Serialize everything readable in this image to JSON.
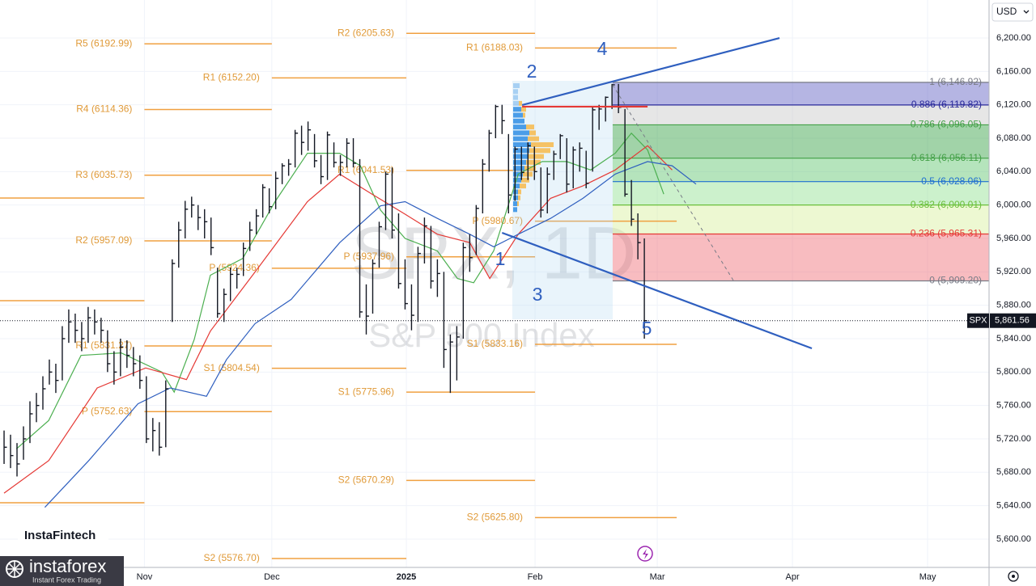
{
  "chart_data": {
    "type": "ohlc",
    "symbol_watermark": "SPX, 1D",
    "name_watermark": "S&P 500 Index",
    "currency": "USD",
    "grid": true,
    "xlim": [
      -0.63,
      152.3
    ],
    "ylim": [
      5566.1,
      6245.5
    ],
    "xticks": [
      {
        "value": 21.7,
        "label": "Nov"
      },
      {
        "value": 41.4,
        "label": "Dec"
      },
      {
        "value": 62.2,
        "label": "2025"
      },
      {
        "value": 82.1,
        "label": "Feb"
      },
      {
        "value": 101,
        "label": "Mar"
      },
      {
        "value": 121.9,
        "label": "Apr"
      },
      {
        "value": 142.8,
        "label": "May"
      }
    ],
    "yticks": [
      {
        "value": 5600,
        "label": "5,600.00"
      },
      {
        "value": 5640,
        "label": "5,640.00"
      },
      {
        "value": 5680,
        "label": "5,680.00"
      },
      {
        "value": 5720,
        "label": "5,720.00"
      },
      {
        "value": 5760,
        "label": "5,760.00"
      },
      {
        "value": 5800,
        "label": "5,800.00"
      },
      {
        "value": 5840,
        "label": "5,840.00"
      },
      {
        "value": 5880,
        "label": "5,880.00"
      },
      {
        "value": 5920,
        "label": "5,920.00"
      },
      {
        "value": 5960,
        "label": "5,960.00"
      },
      {
        "value": 6000,
        "label": "6,000.00"
      },
      {
        "value": 6040,
        "label": "6,040.00"
      },
      {
        "value": 6080,
        "label": "6,080.00"
      },
      {
        "value": 6120,
        "label": "6,120.00"
      },
      {
        "value": 6160,
        "label": "6,160.00"
      },
      {
        "value": 6200,
        "label": "6,200.00"
      }
    ],
    "bar_color": "#131722",
    "high": [
      5730,
      5725,
      5715,
      5735,
      5765,
      5775,
      5795,
      5815,
      5810,
      5855,
      5875,
      5870,
      5860,
      5878,
      5875,
      5865,
      5850,
      5825,
      5840,
      5838,
      5830,
      5820,
      5795,
      5745,
      5740,
      5790,
      5935,
      5980,
      6005,
      6010,
      6000,
      5995,
      5985,
      5925,
      5900,
      5925,
      5925,
      5955,
      5980,
      5995,
      6025,
      6020,
      6040,
      6050,
      6055,
      6090,
      6095,
      6100,
      6085,
      6060,
      6088,
      6075,
      6060,
      6080,
      6080,
      6055,
      5905,
      5935,
      5980,
      6040,
      6045,
      5990,
      5935,
      5905,
      5950,
      5985,
      5975,
      5935,
      5920,
      5845,
      5855,
      5955,
      5965,
      6000,
      6055,
      6090,
      6120,
      6120,
      6085,
      6070,
      6070,
      6075,
      6070,
      6045,
      6045,
      6065,
      6085,
      6080,
      6070,
      6075,
      6065,
      6118,
      6120,
      6130,
      6145,
      6145,
      6115,
      6030,
      5990,
      5960
    ],
    "low": [
      5690,
      5685,
      5675,
      5695,
      5715,
      5740,
      5755,
      5785,
      5775,
      5790,
      5835,
      5835,
      5825,
      5835,
      5845,
      5835,
      5800,
      5785,
      5795,
      5805,
      5795,
      5780,
      5715,
      5705,
      5700,
      5710,
      5860,
      5925,
      5960,
      5985,
      5970,
      5960,
      5940,
      5865,
      5860,
      5885,
      5900,
      5915,
      5945,
      5965,
      5985,
      5990,
      5995,
      6025,
      6035,
      6045,
      6060,
      6065,
      6045,
      6025,
      6030,
      6045,
      6035,
      6045,
      6045,
      5865,
      5845,
      5870,
      5925,
      5970,
      5960,
      5900,
      5875,
      5850,
      5860,
      5930,
      5900,
      5890,
      5805,
      5775,
      5790,
      5840,
      5920,
      5940,
      5990,
      6040,
      6080,
      6085,
      5990,
      6005,
      6030,
      6030,
      6030,
      5985,
      5990,
      6030,
      6055,
      6015,
      6020,
      6040,
      6020,
      6040,
      6090,
      6100,
      6115,
      6110,
      6010,
      5975,
      5935,
      5840
    ],
    "close": [
      5710,
      5700,
      5690,
      5720,
      5750,
      5760,
      5780,
      5800,
      5790,
      5840,
      5860,
      5850,
      5840,
      5865,
      5860,
      5850,
      5810,
      5800,
      5830,
      5820,
      5810,
      5790,
      5720,
      5730,
      5710,
      5780,
      5930,
      5970,
      5995,
      6000,
      5985,
      5980,
      5949,
      5870,
      5893,
      5917,
      5917,
      5948,
      5970,
      5987,
      6021,
      5998,
      6032,
      6047,
      6049,
      6086,
      6075,
      6090,
      6053,
      6034,
      6084,
      6051,
      6051,
      6074,
      6050,
      5872,
      5867,
      5930,
      5974,
      6037,
      5970,
      5906,
      5882,
      5868,
      5942,
      5975,
      5909,
      5918,
      5827,
      5836,
      5842,
      5949,
      5937,
      5996,
      6049,
      6086,
      6118,
      6101,
      6012,
      6067,
      6039,
      6071,
      6040,
      5994,
      6037,
      6061,
      6083,
      6025,
      6066,
      6068,
      6026,
      6114,
      6115,
      6129,
      6144,
      6117,
      6013,
      5983,
      5955,
      5861.56
    ],
    "moving_averages": [
      {
        "color": "#4caf50",
        "x": [
          1.9,
          6.9,
          11.9,
          18.1,
          24.4,
          26.3,
          29.4,
          31.9,
          36.9,
          41.9,
          46.9,
          51.9,
          55.1,
          58.2,
          62,
          67,
          70.1,
          72.6,
          75.7,
          79.5,
          83.2,
          87,
          90.7,
          94.5,
          97,
          99.5,
          102
        ],
        "values": [
          5708,
          5742,
          5820,
          5823,
          5800,
          5776,
          5839,
          5916,
          5936,
          6004,
          6062,
          6062,
          6047,
          5994,
          5960,
          5945,
          5912,
          5907,
          5945,
          6037,
          6052,
          6052,
          6042,
          6062,
          6086,
          6066,
          6013
        ]
      },
      {
        "color": "#e53935",
        "x": [
          0,
          6.9,
          14.4,
          21.9,
          28.2,
          31.9,
          39.4,
          46.9,
          51.9,
          56.9,
          62,
          67,
          72,
          75.1,
          79.5,
          84.5,
          89.5,
          94.5,
          99.5,
          103.3
        ],
        "values": [
          5655,
          5694,
          5781,
          5805,
          5791,
          5849,
          5926,
          6004,
          6037,
          6013,
          5989,
          5965,
          5955,
          5912,
          5965,
          6008,
          6023,
          6042,
          6071,
          6042
        ]
      },
      {
        "color": "#2f5fbf",
        "x": [
          6.3,
          13.1,
          20.7,
          25.7,
          31.3,
          34.4,
          38.8,
          44.4,
          51.9,
          58.2,
          62,
          67,
          72,
          75.7,
          79.5,
          84.5,
          89.5,
          94.5,
          99.5,
          103.3,
          107
        ],
        "values": [
          5638,
          5694,
          5762,
          5781,
          5771,
          5815,
          5858,
          5887,
          5955,
          5999,
          6004,
          5984,
          5965,
          5950,
          5965,
          5984,
          6008,
          6037,
          6052,
          6047,
          6025
        ]
      }
    ],
    "pivot_color": "#f0a040",
    "pivots": [
      {
        "label": null,
        "value": 6008.4,
        "from": -0.63,
        "to": 21.7
      },
      {
        "label": null,
        "value": 5885.5,
        "from": -0.63,
        "to": 21.7
      },
      {
        "label": null,
        "value": 5643.5,
        "from": -0.63,
        "to": 21.7
      },
      {
        "label": "R5 (6192.99)",
        "value": 6192.99,
        "from": 21.7,
        "to": 41.4
      },
      {
        "label": "R4 (6114.36)",
        "value": 6114.36,
        "from": 21.7,
        "to": 41.4
      },
      {
        "label": "R3 (6035.73)",
        "value": 6035.73,
        "from": 21.7,
        "to": 41.4
      },
      {
        "label": "R2 (5957.09)",
        "value": 5957.09,
        "from": 21.7,
        "to": 41.4
      },
      {
        "label": "R1 (5831.27)",
        "value": 5831.27,
        "from": 21.7,
        "to": 41.4
      },
      {
        "label": "P (5752.63)",
        "value": 5752.63,
        "from": 21.7,
        "to": 41.4
      },
      {
        "label": "R1 (6152.20)",
        "value": 6152.2,
        "from": 41.4,
        "to": 62.2
      },
      {
        "label": "P (5924.36)",
        "value": 5924.36,
        "from": 41.4,
        "to": 62.2
      },
      {
        "label": "S1 (5804.54)",
        "value": 5804.54,
        "from": 41.4,
        "to": 62.2
      },
      {
        "label": "S2 (5576.70)",
        "value": 5576.7,
        "from": 41.4,
        "to": 62.2
      },
      {
        "label": "R2 (6205.63)",
        "value": 6205.63,
        "from": 62.2,
        "to": 82.1
      },
      {
        "label": "R1 (6041.53)",
        "value": 6041.53,
        "from": 62.2,
        "to": 82.1
      },
      {
        "label": "P (5937.96)",
        "value": 5937.96,
        "from": 62.2,
        "to": 82.1
      },
      {
        "label": "S1 (5775.96)",
        "value": 5775.96,
        "from": 62.2,
        "to": 82.1
      },
      {
        "label": "S2 (5670.29)",
        "value": 5670.29,
        "from": 62.2,
        "to": 82.1
      },
      {
        "label": "R1 (6188.03)",
        "value": 6188.03,
        "from": 82.1,
        "to": 104
      },
      {
        "label": "P (5980.67)",
        "value": 5980.67,
        "from": 82.1,
        "to": 104
      },
      {
        "label": "S1 (5833.16)",
        "value": 5833.16,
        "from": 82.1,
        "to": 104
      },
      {
        "label": "S2 (5625.80)",
        "value": 5625.8,
        "from": 82.1,
        "to": 104
      }
    ],
    "fibonacci": {
      "x_start": 94.1,
      "levels": [
        {
          "value": 6146.92,
          "label": "1 (6,146.92)",
          "color": "#787b86",
          "fill": "#5c5cc0"
        },
        {
          "value": 6119.82,
          "label": "0.886 (6,119.82)",
          "color": "#2a2a9a",
          "fill": "#c8c8c8"
        },
        {
          "value": 6096.05,
          "label": "0.786 (6,096.05)",
          "color": "#43a047",
          "fill": "#2e9e3e"
        },
        {
          "value": 6056.11,
          "label": "0.618 (6,056.11)",
          "color": "#43a047",
          "fill": "#5cc46a"
        },
        {
          "value": 6028.06,
          "label": "0.5 (6,028.06)",
          "color": "#1e6fd0",
          "fill": "#8fe08f"
        },
        {
          "value": 6000.01,
          "label": "0.382 (6,000.01)",
          "color": "#6abf3a",
          "fill": "#d8ef9c"
        },
        {
          "value": 5965.31,
          "label": "0.236 (5,965.31)",
          "color": "#e53935",
          "fill": "#f06a74"
        },
        {
          "value": 5909.2,
          "label": "0 (5,909.20)",
          "color": "#787b86",
          "fill": null
        }
      ]
    },
    "trendlines": [
      {
        "color": "#2f5fbf",
        "dash": false,
        "points": [
          [
            80.1,
            6119.7
          ],
          [
            119.9,
            6200
          ]
        ]
      },
      {
        "color": "#2f5fbf",
        "dash": false,
        "points": [
          [
            77,
            5966.8
          ],
          [
            124.9,
            5828.4
          ]
        ]
      },
      {
        "color": "#787b86",
        "dash": true,
        "points": [
          [
            94.1,
            6143.9
          ],
          [
            113,
            5906.8
          ]
        ]
      },
      {
        "color": "#e53935",
        "dash": false,
        "points": [
          [
            80.1,
            6117.8
          ],
          [
            99.5,
            6117.8
          ]
        ]
      }
    ],
    "wave_labels": [
      "1",
      "2",
      "3",
      "4",
      "5"
    ],
    "last_price": {
      "symbol": "SPX",
      "value": 5861.56,
      "label": "5,861.56"
    }
  },
  "brand": {
    "fintech": "InstaFintech",
    "logo": "instaforex",
    "tagline": "Instant Forex Trading"
  }
}
